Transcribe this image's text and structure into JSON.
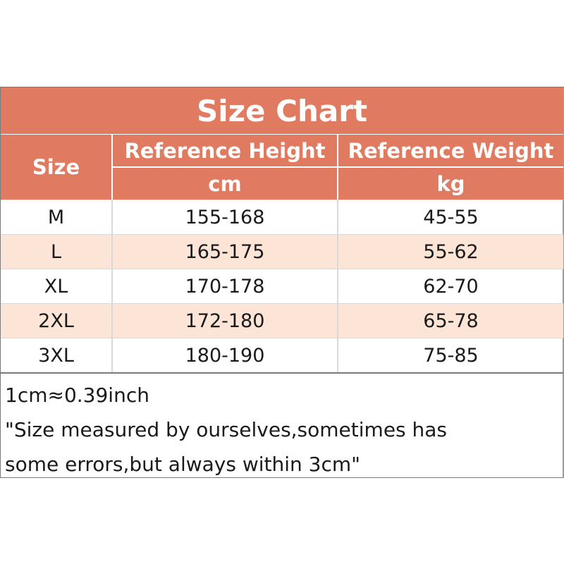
{
  "title": "Size Chart",
  "headers": {
    "size": "Size",
    "height": "Reference Height",
    "height_unit": "cm",
    "weight": "Reference Weight",
    "weight_unit": "kg"
  },
  "rows": [
    {
      "size": "M",
      "height": "155-168",
      "weight": "45-55"
    },
    {
      "size": "L",
      "height": "165-175",
      "weight": "55-62"
    },
    {
      "size": "XL",
      "height": "170-178",
      "weight": "62-70"
    },
    {
      "size": "2XL",
      "height": "172-180",
      "weight": "65-78"
    },
    {
      "size": "3XL",
      "height": "180-190",
      "weight": "75-85"
    }
  ],
  "notes": {
    "conversion": "1cm≈0.39inch",
    "disclaimer_line1": "\"Size measured by ourselves,sometimes has",
    "disclaimer_line2": "some errors,but always within 3cm\""
  },
  "colors": {
    "header_bg": "#e07a60",
    "alt_row_bg": "#fce4d6"
  }
}
